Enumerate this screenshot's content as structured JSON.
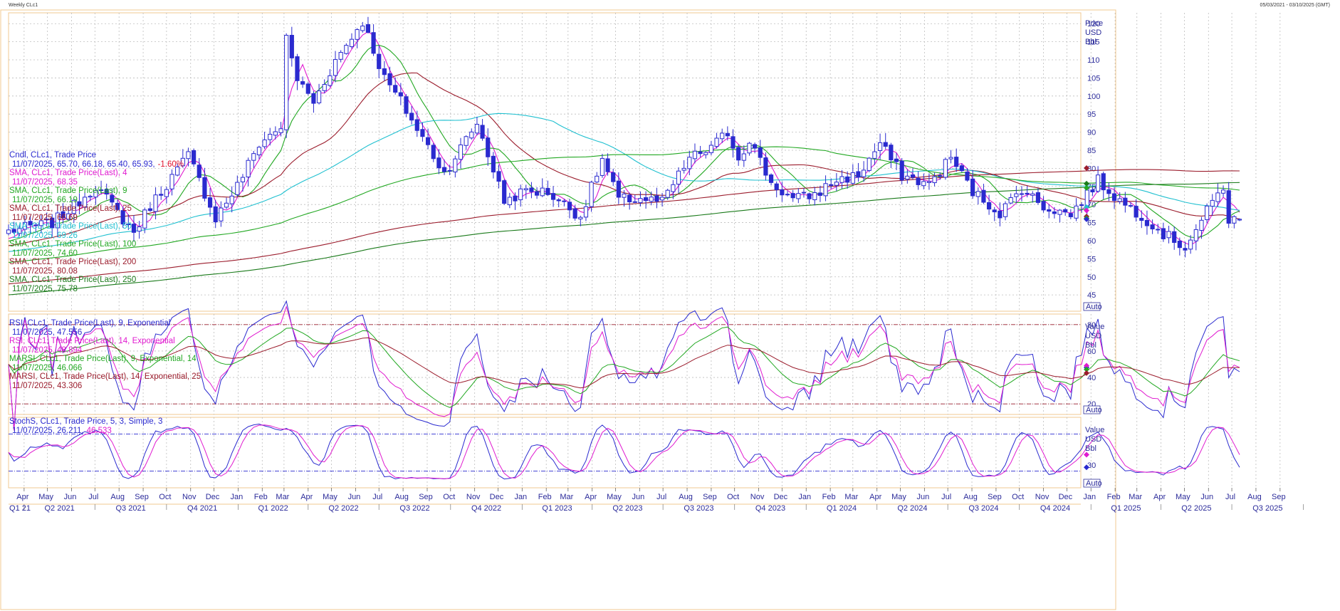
{
  "window": {
    "title": "Weekly CLc1",
    "range": "05/03/2021 - 03/10/2025 (GMT)"
  },
  "panels": {
    "price": {
      "unit_label": [
        "Price",
        "USD",
        "Bbl"
      ],
      "auto_label": "Auto",
      "legend": [
        {
          "name": "Cndl, CLc1, Trade Price",
          "value": "11/07/2025, 65.70, 66.18, 65.40, 65.93,",
          "change": "-1.60%",
          "color": "#2a2acf"
        },
        {
          "name": "SMA, CLc1, Trade Price(Last),  4",
          "value": "11/07/2025, 68.35",
          "color": "#e01ad0"
        },
        {
          "name": "SMA, CLc1, Trade Price(Last),  9",
          "value": "11/07/2025, 66.19",
          "color": "#22a822"
        },
        {
          "name": "SMA, CLc1, Trade Price(Last),  25",
          "value": "11/07/2025, 66.69",
          "color": "#9b1c2c"
        },
        {
          "name": "SMA, CLc1, Trade Price(Last),  50",
          "value": "11/07/2025, 69.26",
          "color": "#20c0d0"
        },
        {
          "name": "SMA, CLc1, Trade Price(Last),  100",
          "value": "11/07/2025, 74.60",
          "color": "#22a822"
        },
        {
          "name": "SMA, CLc1, Trade Price(Last),  200",
          "value": "11/07/2025, 80.08",
          "color": "#9b1c2c"
        },
        {
          "name": "SMA, CLc1, Trade Price(Last),  250",
          "value": "11/07/2025, 75.78",
          "color": "#1a7a1a"
        }
      ]
    },
    "rsi": {
      "unit_label": [
        "Value",
        "USD",
        "Bbl"
      ],
      "auto_label": "Auto",
      "legend": [
        {
          "name": "RSI, CLc1, Trade Price(Last),  9, Exponential",
          "value": "11/07/2025, 47.556",
          "color": "#2a2acf"
        },
        {
          "name": "RSI, CLc1, Trade Price(Last),  14, Exponential",
          "value": "11/07/2025, 48.894",
          "color": "#e01ad0"
        },
        {
          "name": "MARSI, CLc1, Trade Price(Last),  9, Exponential, 14",
          "value": "11/07/2025, 46.066",
          "color": "#22a822"
        },
        {
          "name": "MARSI, CLc1, Trade Price(Last),  14, Exponential, 25",
          "value": "11/07/2025, 43.306",
          "color": "#9b1c2c"
        }
      ]
    },
    "stoch": {
      "unit_label": [
        "Value",
        "USD",
        "Bbl"
      ],
      "auto_label": "Auto",
      "legend": [
        {
          "name": "StochS, CLc1, Trade Price,  5, 3, Simple, 3",
          "value": "11/07/2025, 26.211,",
          "value2": "46.533",
          "color": "#2a2acf",
          "color2": "#e01ad0"
        }
      ]
    }
  },
  "chart_data": [
    {
      "type": "candlestick",
      "panel": "price",
      "y_ticks": [
        45,
        50,
        55,
        60,
        65,
        70,
        75,
        80,
        85,
        90,
        95,
        100,
        105,
        110,
        115,
        120
      ],
      "ylim": [
        40.5,
        123
      ],
      "grid": true,
      "x_months": [
        "Apr",
        "May",
        "Jun",
        "Jul",
        "Aug",
        "Sep",
        "Oct",
        "Nov",
        "Dec",
        "Jan",
        "Feb",
        "Mar",
        "Apr",
        "May",
        "Jun",
        "Jul",
        "Aug",
        "Sep",
        "Oct",
        "Nov",
        "Dec",
        "Jan",
        "Feb",
        "Mar",
        "Apr",
        "May",
        "Jun",
        "Jul",
        "Aug",
        "Sep",
        "Oct",
        "Nov",
        "Dec",
        "Jan",
        "Feb",
        "Mar",
        "Apr",
        "May",
        "Jun",
        "Jul",
        "Aug",
        "Sep",
        "Oct",
        "Nov",
        "Dec",
        "Jan",
        "Feb",
        "Mar",
        "Apr",
        "May",
        "Jun",
        "Jul",
        "Aug",
        "Sep"
      ],
      "x_quarters": [
        "Q1 21",
        "Q2 2021",
        "Q3 2021",
        "Q4 2021",
        "Q1 2022",
        "Q2 2022",
        "Q3 2022",
        "Q4 2022",
        "Q1 2023",
        "Q2 2023",
        "Q3 2023",
        "Q4 2023",
        "Q1 2024",
        "Q2 2024",
        "Q3 2024",
        "Q4 2024",
        "Q1 2025",
        "Q2 2025",
        "Q3 2025"
      ],
      "close_anchors": [
        [
          "2021-05-07",
          64.9
        ],
        [
          "2021-06-04",
          69.6
        ],
        [
          "2021-07-02",
          75.2
        ],
        [
          "2021-08-20",
          62.3
        ],
        [
          "2021-09-10",
          69.7
        ],
        [
          "2021-10-29",
          83.6
        ],
        [
          "2021-12-03",
          66.3
        ],
        [
          "2021-12-31",
          75.2
        ],
        [
          "2022-01-28",
          86.8
        ],
        [
          "2022-02-25",
          91.6
        ],
        [
          "2022-03-04",
          115.7
        ],
        [
          "2022-03-18",
          104.7
        ],
        [
          "2022-04-08",
          98.3
        ],
        [
          "2022-05-06",
          109.8
        ],
        [
          "2022-06-10",
          120.7
        ],
        [
          "2022-07-08",
          104.8
        ],
        [
          "2022-07-29",
          98.6
        ],
        [
          "2022-08-19",
          90.8
        ],
        [
          "2022-09-23",
          78.7
        ],
        [
          "2022-10-14",
          85.6
        ],
        [
          "2022-11-04",
          92.6
        ],
        [
          "2022-12-09",
          71.0
        ],
        [
          "2023-01-06",
          73.8
        ],
        [
          "2023-02-03",
          73.4
        ],
        [
          "2023-03-17",
          66.7
        ],
        [
          "2023-04-14",
          82.5
        ],
        [
          "2023-05-05",
          71.3
        ],
        [
          "2023-06-02",
          71.7
        ],
        [
          "2023-06-30",
          70.6
        ],
        [
          "2023-08-04",
          82.8
        ],
        [
          "2023-09-01",
          85.6
        ],
        [
          "2023-09-22",
          90.0
        ],
        [
          "2023-10-06",
          82.8
        ],
        [
          "2023-10-20",
          88.1
        ],
        [
          "2023-11-17",
          75.9
        ],
        [
          "2023-12-15",
          71.4
        ],
        [
          "2024-01-12",
          72.7
        ],
        [
          "2024-02-09",
          76.8
        ],
        [
          "2024-03-08",
          78.0
        ],
        [
          "2024-04-05",
          86.9
        ],
        [
          "2024-05-03",
          78.1
        ],
        [
          "2024-06-07",
          75.5
        ],
        [
          "2024-07-05",
          83.1
        ],
        [
          "2024-08-02",
          73.5
        ],
        [
          "2024-09-06",
          67.7
        ],
        [
          "2024-10-04",
          74.4
        ],
        [
          "2024-11-01",
          69.5
        ],
        [
          "2024-12-06",
          67.2
        ],
        [
          "2025-01-10",
          76.6
        ],
        [
          "2025-02-07",
          71.0
        ],
        [
          "2025-03-07",
          67.0
        ],
        [
          "2025-04-04",
          61.9
        ],
        [
          "2025-05-02",
          58.3
        ],
        [
          "2025-06-13",
          72.9
        ],
        [
          "2025-06-20",
          75.1
        ],
        [
          "2025-06-27",
          65.5
        ],
        [
          "2025-07-11",
          65.93
        ]
      ],
      "last": {
        "date": "2025-07-11",
        "open": 65.7,
        "high": 66.18,
        "low": 65.4,
        "close": 65.93,
        "change_pct": -1.6
      }
    },
    {
      "type": "line",
      "panel": "rsi",
      "y_ticks": [
        20,
        40,
        60,
        80
      ],
      "ylim": [
        12,
        88
      ],
      "levels": [
        80,
        20
      ],
      "last_values": {
        "RSI 9": 47.556,
        "RSI 14": 48.894,
        "MARSI 9/14": 46.066,
        "MARSI 14/25": 43.306
      }
    },
    {
      "type": "line",
      "panel": "stoch",
      "y_ticks": [
        30
      ],
      "ylim": [
        0,
        100
      ],
      "levels": [
        80,
        20
      ],
      "last_values": {
        "%K": 26.211,
        "%D": 46.533
      }
    }
  ]
}
